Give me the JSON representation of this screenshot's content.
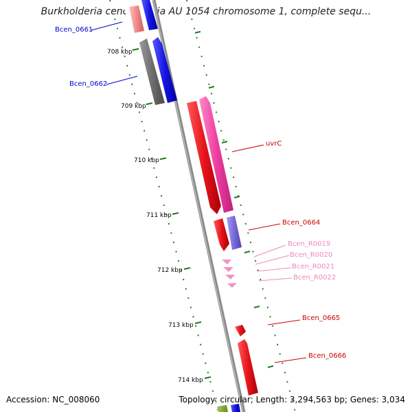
{
  "title": "Burkholderia cenocepacia AU 1054 chromosome 1, complete sequ...",
  "footer": {
    "accession": "Accession: NC_008060",
    "topology": "Topology: circular; Length: 3,294,563 bp; Genes: 3,034"
  },
  "colors": {
    "backbone": "#8a8a8a",
    "tick": "#1f7a1f",
    "cds_red": "#e8141c",
    "cds_magenta": "#ee3fa0",
    "cds_blue": "#1515e0",
    "cds_gray": "#6e6e6e",
    "cds_pink": "#f08a8a",
    "cds_purple": "#7a6ad8",
    "rna_pink": "#f28fc8",
    "cds_olive": "#7a9a30",
    "label_blue": "#0000cc",
    "label_red": "#cc0000",
    "label_pink": "#ee88bb"
  },
  "kbp_labels": [
    "708 kbp",
    "709 kbp",
    "710 kbp",
    "711 kbp",
    "712 kbp",
    "713 kbp",
    "714 kbp"
  ],
  "gene_labels": [
    {
      "name": "Bcen_0661",
      "color": "label_blue"
    },
    {
      "name": "Bcen_0662",
      "color": "label_blue"
    },
    {
      "name": "uvrC",
      "color": "label_red"
    },
    {
      "name": "Bcen_0664",
      "color": "label_red"
    },
    {
      "name": "Bcen_R0019",
      "color": "label_pink"
    },
    {
      "name": "Bcen_R0020",
      "color": "label_pink"
    },
    {
      "name": "Bcen_R0021",
      "color": "label_pink"
    },
    {
      "name": "Bcen_R0022",
      "color": "label_pink"
    },
    {
      "name": "Bcen_0665",
      "color": "label_red"
    },
    {
      "name": "Bcen_0666",
      "color": "label_red"
    }
  ]
}
